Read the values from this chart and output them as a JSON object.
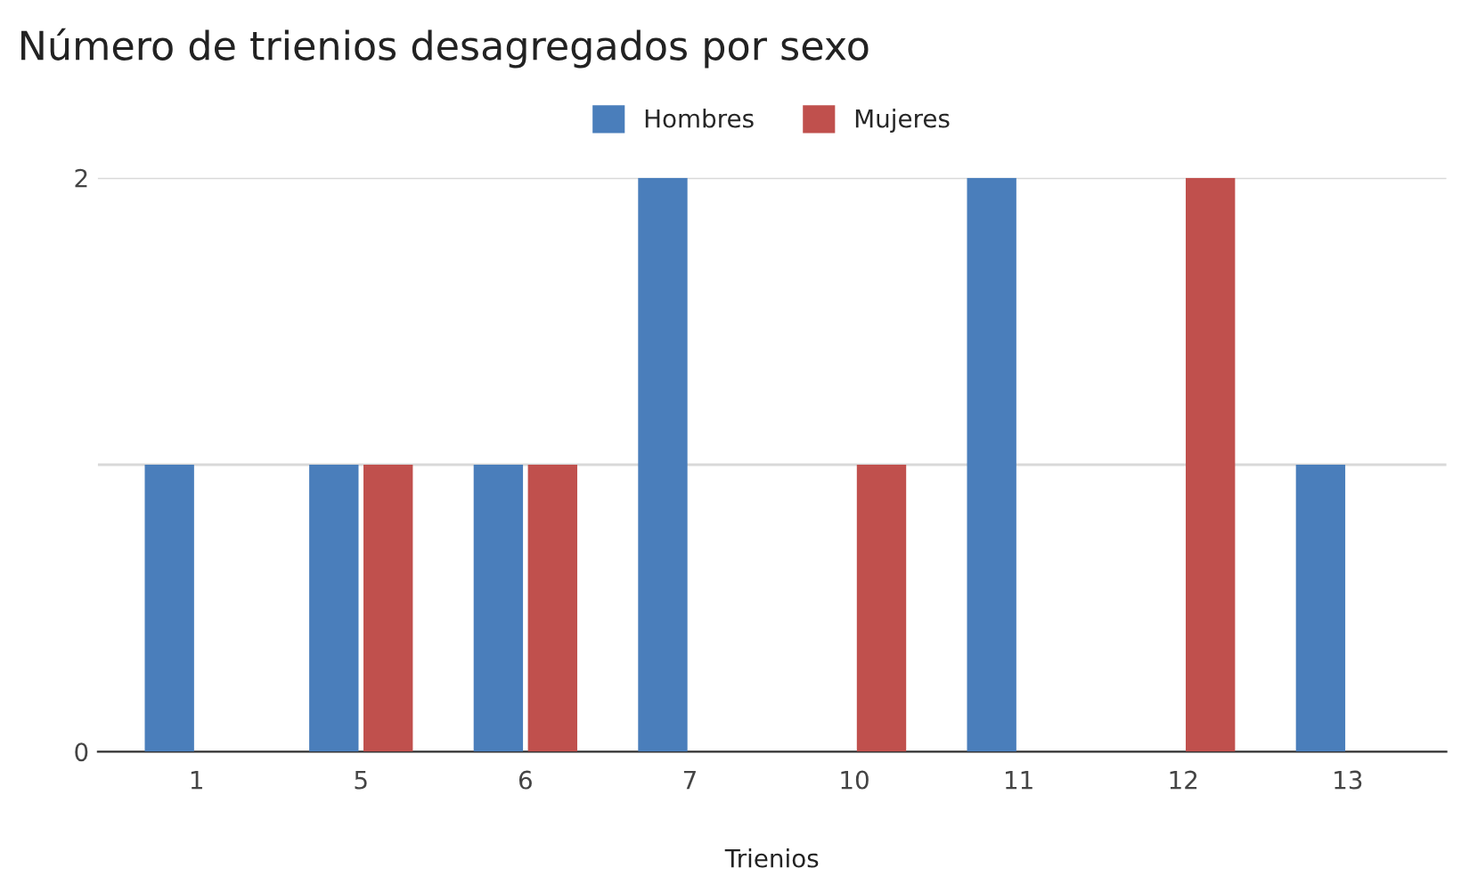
{
  "chart_data": {
    "type": "bar",
    "title": "Número de trienios desagregados por sexo",
    "xlabel": "Trienios",
    "categories": [
      "1",
      "5",
      "6",
      "7",
      "10",
      "11",
      "12",
      "13"
    ],
    "series": [
      {
        "name": "Hombres",
        "color": "#4a7ebb",
        "values": [
          1,
          1,
          1,
          2,
          null,
          2,
          null,
          1
        ]
      },
      {
        "name": "Mujeres",
        "color": "#c0504d",
        "values": [
          null,
          1,
          1,
          null,
          1,
          null,
          2,
          null
        ]
      }
    ],
    "ylim": [
      0,
      2
    ],
    "yticks": [
      0,
      {
        "value": 1,
        "label": null
      },
      2
    ],
    "grid": "y",
    "legend": "top"
  }
}
